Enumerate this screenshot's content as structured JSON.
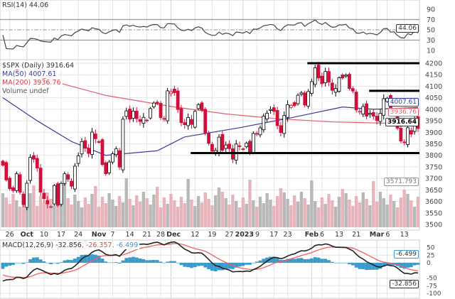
{
  "chart_data": {
    "type": "candlestick",
    "symbol_label": "$SPX (Daily) 3916.64",
    "legend": {
      "ma50": "MA(50) 4007.61",
      "ma200": "MA(200) 3936.76",
      "volume": "Volume undef",
      "rsi": "RSI(14) 44.06",
      "macd_name": "MACD(12,26,9)",
      "macd_value": "-32.856",
      "macd_signal": ", -26.357",
      "macd_hist": ", -6.499"
    },
    "price_axis": {
      "ylim": [
        3500,
        4200
      ],
      "ticks": [
        "4200",
        "4150",
        "4100",
        "4050",
        "4000",
        "3950",
        "3900",
        "3850",
        "3800",
        "3750",
        "3700",
        "3650",
        "3600",
        "3550",
        "3500"
      ]
    },
    "rsi_axis": {
      "ylim": [
        10,
        90
      ],
      "ticks": [
        "90",
        "70",
        "50",
        "30",
        "10"
      ],
      "bands": [
        70,
        30
      ]
    },
    "macd_axis": {
      "ylim": [
        -100,
        50
      ],
      "ticks": [
        "50",
        "25",
        "0",
        "-50",
        "-75",
        "-100"
      ]
    },
    "value_tags": {
      "ma50": "4007.61",
      "ma200": "3936.76",
      "close": "3916.64",
      "volume": "3571.793",
      "rsi": "44.06",
      "macd_hist": "-6.499",
      "macd": "-32.856"
    },
    "x_ticks": [
      {
        "label": "26",
        "date": "09-26"
      },
      {
        "label": "Oct",
        "date": "10-03",
        "bold": true
      },
      {
        "label": "10",
        "date": "10-10"
      },
      {
        "label": "17",
        "date": "10-17"
      },
      {
        "label": "24",
        "date": "10-24"
      },
      {
        "label": "Nov",
        "date": "11-01",
        "bold": true
      },
      {
        "label": "7",
        "date": "11-07"
      },
      {
        "label": "14",
        "date": "11-14"
      },
      {
        "label": "21",
        "date": "11-21"
      },
      {
        "label": "28",
        "date": "11-28"
      },
      {
        "label": "Dec",
        "date": "12-01",
        "bold": true
      },
      {
        "label": "12",
        "date": "12-12"
      },
      {
        "label": "19",
        "date": "12-19"
      },
      {
        "label": "27",
        "date": "12-27"
      },
      {
        "label": "2023",
        "date": "01-03",
        "bold": true
      },
      {
        "label": "9",
        "date": "01-09"
      },
      {
        "label": "17",
        "date": "01-17"
      },
      {
        "label": "23",
        "date": "01-23"
      },
      {
        "label": "Feb",
        "date": "02-01",
        "bold": true
      },
      {
        "label": "6",
        "date": "02-06"
      },
      {
        "label": "13",
        "date": "02-13"
      },
      {
        "label": "21",
        "date": "02-21"
      },
      {
        "label": "Mar",
        "date": "03-01",
        "bold": true
      },
      {
        "label": "6",
        "date": "03-06"
      },
      {
        "label": "13",
        "date": "03-13"
      }
    ],
    "support_resistance_lines": [
      {
        "price": 4200,
        "from": "02-01"
      },
      {
        "price": 4080,
        "from": "02-28"
      },
      {
        "price": 3810,
        "from": "12-12"
      }
    ],
    "ma50_samples": [
      [
        "09-22",
        4050
      ],
      [
        "10-06",
        3950
      ],
      [
        "10-20",
        3860
      ],
      [
        "11-03",
        3800
      ],
      [
        "11-25",
        3820
      ],
      [
        "12-07",
        3880
      ],
      [
        "12-30",
        3920
      ],
      [
        "01-23",
        3960
      ],
      [
        "02-14",
        4010
      ],
      [
        "02-28",
        4000
      ],
      [
        "03-17",
        4007.61
      ]
    ],
    "ma200_samples": [
      [
        "09-22",
        4190
      ],
      [
        "10-13",
        4120
      ],
      [
        "11-03",
        4060
      ],
      [
        "12-02",
        4010
      ],
      [
        "12-23",
        3980
      ],
      [
        "01-17",
        3960
      ],
      [
        "02-09",
        3945
      ],
      [
        "03-17",
        3936.76
      ]
    ],
    "closes": [
      [
        "09-22",
        3757
      ],
      [
        "09-23",
        3693
      ],
      [
        "09-26",
        3655
      ],
      [
        "09-27",
        3647
      ],
      [
        "09-28",
        3720
      ],
      [
        "09-29",
        3640
      ],
      [
        "09-30",
        3586
      ],
      [
        "10-03",
        3679
      ],
      [
        "10-04",
        3791
      ],
      [
        "10-05",
        3783
      ],
      [
        "10-06",
        3745
      ],
      [
        "10-07",
        3640
      ],
      [
        "10-10",
        3612
      ],
      [
        "10-11",
        3589
      ],
      [
        "10-12",
        3577
      ],
      [
        "10-13",
        3669
      ],
      [
        "10-14",
        3583
      ],
      [
        "10-17",
        3678
      ],
      [
        "10-18",
        3720
      ],
      [
        "10-19",
        3696
      ],
      [
        "10-20",
        3666
      ],
      [
        "10-21",
        3753
      ],
      [
        "10-24",
        3798
      ],
      [
        "10-25",
        3860
      ],
      [
        "10-26",
        3831
      ],
      [
        "10-27",
        3808
      ],
      [
        "10-28",
        3901
      ],
      [
        "10-31",
        3872
      ],
      [
        "11-01",
        3856
      ],
      [
        "11-02",
        3760
      ],
      [
        "11-03",
        3720
      ],
      [
        "11-04",
        3771
      ],
      [
        "11-07",
        3807
      ],
      [
        "11-08",
        3828
      ],
      [
        "11-09",
        3749
      ],
      [
        "11-10",
        3957
      ],
      [
        "11-11",
        3993
      ],
      [
        "11-14",
        3957
      ],
      [
        "11-15",
        3992
      ],
      [
        "11-16",
        3959
      ],
      [
        "11-17",
        3947
      ],
      [
        "11-18",
        3965
      ],
      [
        "11-21",
        3950
      ],
      [
        "11-22",
        4003
      ],
      [
        "11-23",
        4027
      ],
      [
        "11-25",
        4026
      ],
      [
        "11-28",
        3964
      ],
      [
        "11-29",
        3958
      ],
      [
        "11-30",
        4080
      ],
      [
        "12-01",
        4076
      ],
      [
        "12-02",
        4072
      ],
      [
        "12-05",
        3999
      ],
      [
        "12-06",
        3942
      ],
      [
        "12-07",
        3933
      ],
      [
        "12-08",
        3964
      ],
      [
        "12-09",
        3934
      ],
      [
        "12-12",
        3991
      ],
      [
        "12-13",
        4020
      ],
      [
        "12-14",
        3996
      ],
      [
        "12-15",
        3896
      ],
      [
        "12-16",
        3852
      ],
      [
        "12-19",
        3818
      ],
      [
        "12-20",
        3821
      ],
      [
        "12-21",
        3879
      ],
      [
        "12-22",
        3822
      ],
      [
        "12-23",
        3845
      ],
      [
        "12-27",
        3829
      ],
      [
        "12-28",
        3783
      ],
      [
        "12-29",
        3849
      ],
      [
        "12-30",
        3840
      ],
      [
        "01-03",
        3825
      ],
      [
        "01-04",
        3853
      ],
      [
        "01-05",
        3809
      ],
      [
        "01-06",
        3895
      ],
      [
        "01-09",
        3893
      ],
      [
        "01-10",
        3919
      ],
      [
        "01-11",
        3970
      ],
      [
        "01-12",
        3983
      ],
      [
        "01-13",
        3999
      ],
      [
        "01-17",
        3991
      ],
      [
        "01-18",
        3929
      ],
      [
        "01-19",
        3899
      ],
      [
        "01-20",
        3973
      ],
      [
        "01-23",
        4020
      ],
      [
        "01-24",
        4017
      ],
      [
        "01-25",
        4016
      ],
      [
        "01-26",
        4061
      ],
      [
        "01-27",
        4071
      ],
      [
        "01-30",
        4018
      ],
      [
        "01-31",
        4077
      ],
      [
        "02-01",
        4120
      ],
      [
        "02-02",
        4180
      ],
      [
        "02-03",
        4136
      ],
      [
        "02-06",
        4111
      ],
      [
        "02-07",
        4164
      ],
      [
        "02-08",
        4118
      ],
      [
        "02-09",
        4082
      ],
      [
        "02-10",
        4090
      ],
      [
        "02-13",
        4137
      ],
      [
        "02-14",
        4136
      ],
      [
        "02-15",
        4148
      ],
      [
        "02-16",
        4090
      ],
      [
        "02-17",
        4079
      ],
      [
        "02-21",
        3997
      ],
      [
        "02-22",
        3991
      ],
      [
        "02-23",
        4012
      ],
      [
        "02-24",
        3970
      ],
      [
        "02-27",
        3982
      ],
      [
        "02-28",
        3970
      ],
      [
        "03-01",
        3951
      ],
      [
        "03-02",
        3982
      ],
      [
        "03-03",
        4046
      ],
      [
        "03-06",
        4048
      ],
      [
        "03-07",
        3986
      ],
      [
        "03-08",
        3992
      ],
      [
        "03-09",
        3918
      ],
      [
        "03-10",
        3862
      ],
      [
        "03-13",
        3855
      ],
      [
        "03-14",
        3920
      ],
      [
        "03-15",
        3892
      ],
      [
        "03-16",
        3960
      ],
      [
        "03-17",
        3916.64
      ]
    ],
    "colors": {
      "up": "#000000",
      "down": "#d0103a",
      "ma50": "#3a3a9a",
      "ma200": "#e06070",
      "volume_down": "#e8b4bc",
      "volume_up": "#b8b8b8",
      "macd": "#222222",
      "signal": "#f06060",
      "histogram": "#3a9acc",
      "grid": "#e4e4e4"
    }
  }
}
